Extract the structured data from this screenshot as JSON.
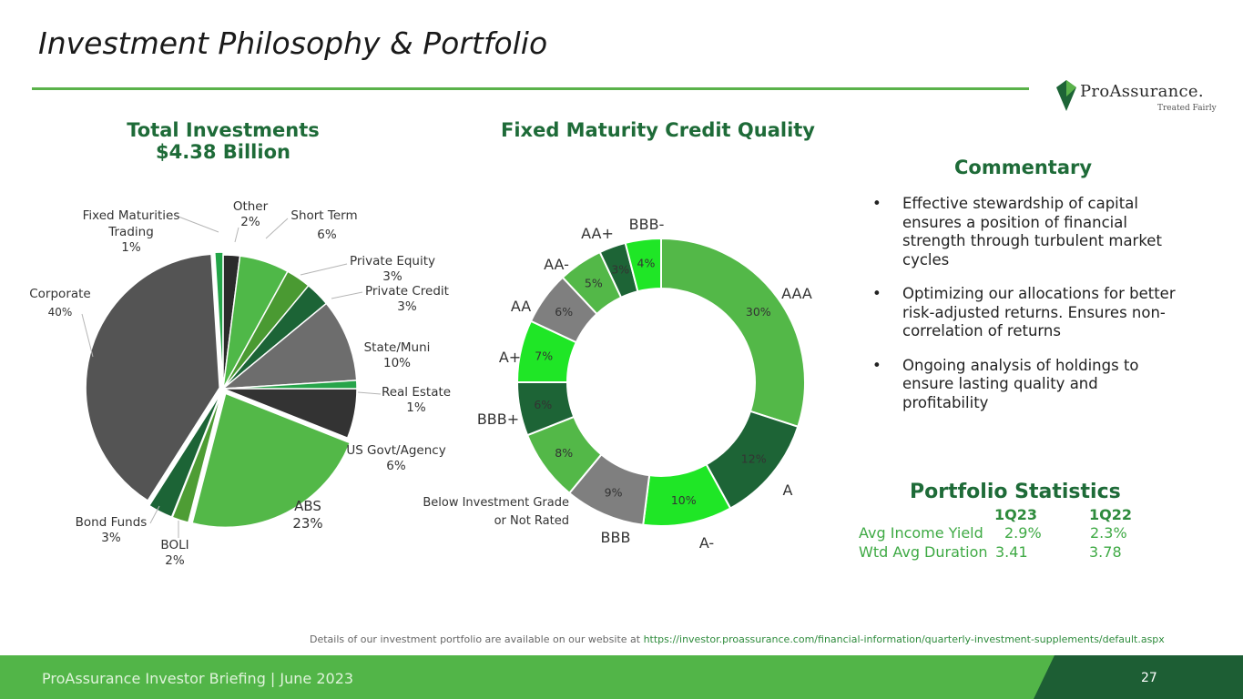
{
  "slide": {
    "title": "Investment Philosophy & Portfolio",
    "logo": {
      "name": "ProAssurance.",
      "tagline": "Treated Fairly"
    },
    "footer": {
      "text": "ProAssurance Investor Briefing | June 2023",
      "page": "27"
    },
    "footnote": {
      "text": "Details of our investment portfolio are available on our website at ",
      "url": "https://investor.proassurance.com/financial-information/quarterly-investment-supplements/default.aspx"
    }
  },
  "total_investments": {
    "heading_line1": "Total Investments",
    "heading_line2": "$4.38 Billion"
  },
  "credit_quality": {
    "heading": "Fixed Maturity Credit Quality"
  },
  "commentary": {
    "heading": "Commentary",
    "bullet_glyph": "•",
    "bullets": [
      "Effective stewardship of capital ensures a position of financial strength through turbulent market cycles",
      "Optimizing our allocations for better risk-adjusted returns. Ensures non-correlation of returns",
      "Ongoing analysis of holdings to ensure lasting quality and profitability"
    ]
  },
  "portfolio_statistics": {
    "heading": "Portfolio Statistics",
    "columns": [
      "1Q23",
      "1Q22"
    ],
    "rows": [
      {
        "label": "Avg Income Yield",
        "values": [
          "2.9%",
          "2.3%"
        ]
      },
      {
        "label": "Wtd Avg Duration",
        "values": [
          "3.41",
          "3.78"
        ]
      }
    ]
  },
  "chart_data": [
    {
      "type": "pie",
      "title": "Total Investments $4.38 Billion",
      "slices": [
        {
          "name": "Fixed Maturities Trading",
          "label": "1%",
          "value": 1,
          "color": "#23a548"
        },
        {
          "name": "Other",
          "label": "2%",
          "value": 2,
          "color": "#2b2b2b"
        },
        {
          "name": "Short Term",
          "label": "6%",
          "value": 6,
          "color": "#4fb848"
        },
        {
          "name": "Private Equity",
          "label": "3%",
          "value": 3,
          "color": "#4a9a32"
        },
        {
          "name": "Private Credit",
          "label": "3%",
          "value": 3,
          "color": "#1c6436"
        },
        {
          "name": "State/Muni",
          "label": "10%",
          "value": 10,
          "color": "#6d6d6d"
        },
        {
          "name": "Real Estate",
          "label": "1%",
          "value": 1,
          "color": "#27a44a"
        },
        {
          "name": "US Govt/Agency",
          "label": "6%",
          "value": 6,
          "color": "#333333"
        },
        {
          "name": "ABS",
          "label": "23%",
          "value": 23,
          "color": "#53b848"
        },
        {
          "name": "BOLI",
          "label": "2%",
          "value": 2,
          "color": "#4e9d34"
        },
        {
          "name": "Bond Funds",
          "label": "3%",
          "value": 3,
          "color": "#1c6436"
        },
        {
          "name": "Corporate",
          "label": "40%",
          "value": 40,
          "color": "#545454"
        }
      ]
    },
    {
      "type": "pie",
      "title": "Fixed Maturity Credit Quality",
      "slices": [
        {
          "name": "AAA",
          "label": "30%",
          "value": 30,
          "color": "#53b848"
        },
        {
          "name": "A",
          "label": "12%",
          "value": 12,
          "color": "#1d6436"
        },
        {
          "name": "A-",
          "label": "10%",
          "value": 10,
          "color": "#1fe626"
        },
        {
          "name": "BBB",
          "label": "9%",
          "value": 9,
          "color": "#7f7f7f"
        },
        {
          "name": "Below Investment Grade or Not Rated",
          "label": "8%",
          "value": 8,
          "color": "#53b848"
        },
        {
          "name": "BBB+",
          "label": "6%",
          "value": 6,
          "color": "#1d6436"
        },
        {
          "name": "A+",
          "label": "7%",
          "value": 7,
          "color": "#1fe626"
        },
        {
          "name": "AA",
          "label": "6%",
          "value": 6,
          "color": "#7f7f7f"
        },
        {
          "name": "AA-",
          "label": "5%",
          "value": 5,
          "color": "#53b848"
        },
        {
          "name": "AA+",
          "label": "3%",
          "value": 3,
          "color": "#1d6436"
        },
        {
          "name": "BBB-",
          "label": "4%",
          "value": 4,
          "color": "#1fe626"
        }
      ]
    }
  ]
}
